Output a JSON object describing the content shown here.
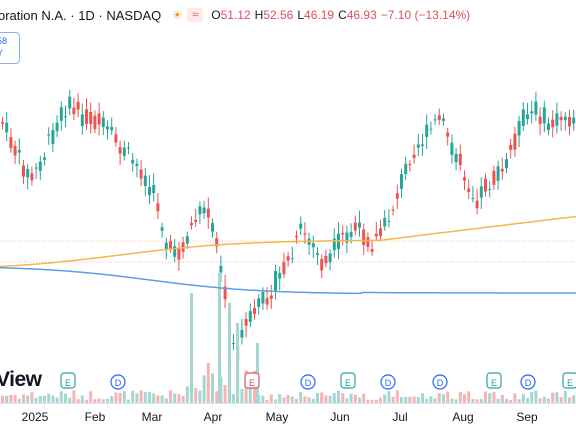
{
  "header": {
    "title": "oration N.A. · 1D · NASDAQ",
    "o_key": "O",
    "o_val": "51.12",
    "h_key": "H",
    "h_val": "52.56",
    "l_key": "L",
    "l_val": "46.19",
    "c_key": "C",
    "c_val": "46.93",
    "change": "−7.10 (−13.14%)"
  },
  "badge": {
    "line1": "58",
    "line2": "Y"
  },
  "watermark": "View",
  "colors": {
    "up": "#26a69a",
    "down": "#ef5350",
    "ma_orange": "#f5b452",
    "ma_blue": "#5c9ee0"
  },
  "events": [
    {
      "type": "E",
      "label": "E"
    },
    {
      "type": "D",
      "label": "D"
    },
    {
      "type": "E",
      "label": "E"
    },
    {
      "type": "D",
      "label": "D"
    },
    {
      "type": "E",
      "label": "E"
    },
    {
      "type": "D",
      "label": "D"
    },
    {
      "type": "D",
      "label": "D"
    },
    {
      "type": "E",
      "label": "E"
    },
    {
      "type": "D",
      "label": "D"
    },
    {
      "type": "E",
      "label": "E"
    }
  ],
  "xaxis": [
    "2025",
    "Feb",
    "Mar",
    "Apr",
    "May",
    "Jun",
    "Jul",
    "Aug",
    "Sep"
  ]
}
